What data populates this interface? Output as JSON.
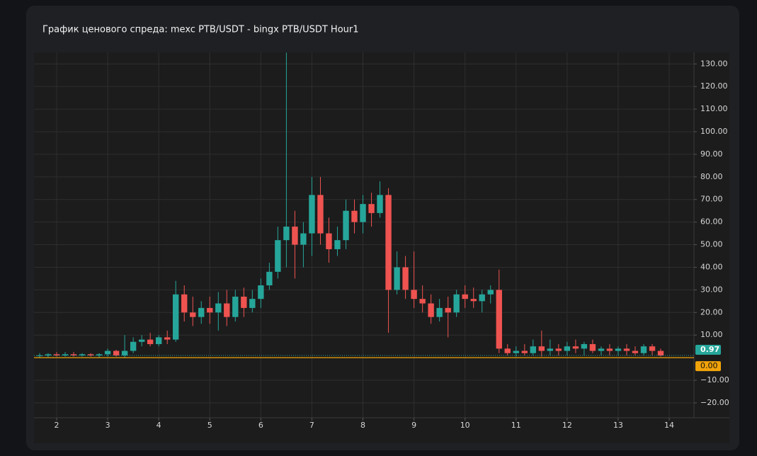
{
  "chart_data": {
    "type": "candlestick",
    "title": "График ценового спреда: mexc PTB/USDT - bingx PTB/USDT Hour1",
    "x": [
      1.667,
      1.833,
      2.0,
      2.167,
      2.333,
      2.5,
      2.667,
      2.833,
      3.0,
      3.167,
      3.333,
      3.5,
      3.667,
      3.833,
      4.0,
      4.167,
      4.333,
      4.5,
      4.667,
      4.833,
      5.0,
      5.167,
      5.333,
      5.5,
      5.667,
      5.833,
      6.0,
      6.167,
      6.333,
      6.5,
      6.667,
      6.833,
      7.0,
      7.167,
      7.333,
      7.5,
      7.667,
      7.833,
      8.0,
      8.167,
      8.333,
      8.5,
      8.667,
      8.833,
      9.0,
      9.167,
      9.333,
      9.5,
      9.667,
      9.833,
      10.0,
      10.167,
      10.333,
      10.5,
      10.667,
      10.833,
      11.0,
      11.167,
      11.333,
      11.5,
      11.667,
      11.833,
      12.0,
      12.167,
      12.333,
      12.5,
      12.667,
      12.833,
      13.0,
      13.167,
      13.333,
      13.5,
      13.667,
      13.833
    ],
    "open": [
      1,
      1,
      1.5,
      1,
      1.5,
      1,
      1.5,
      1,
      1.5,
      3,
      1,
      3,
      7,
      8,
      6,
      9,
      8,
      28,
      20,
      18,
      22,
      20,
      24,
      18,
      27,
      22,
      26,
      32,
      38,
      52,
      58,
      50,
      55,
      72,
      55,
      48,
      52,
      65,
      60,
      68,
      64,
      72,
      30,
      40,
      30,
      26,
      24,
      18,
      22,
      20,
      28,
      26,
      25,
      28,
      30,
      4,
      2,
      3,
      2,
      5,
      3,
      4,
      3,
      5,
      4,
      6,
      3,
      4,
      3,
      4,
      3,
      2,
      5,
      3
    ],
    "high": [
      2,
      2,
      2.5,
      2.5,
      2.5,
      2,
      2,
      2,
      4,
      3.5,
      10,
      9,
      10,
      11,
      10,
      12,
      34,
      32,
      27,
      25,
      27,
      29,
      30,
      30,
      31,
      30,
      35,
      42,
      58,
      135,
      65,
      60,
      80,
      80,
      62,
      58,
      70,
      70,
      72,
      73,
      78,
      75,
      47,
      45,
      47,
      32,
      28,
      26,
      27,
      30,
      32,
      31,
      30,
      32,
      39,
      6,
      5,
      6,
      8,
      12,
      8,
      6,
      7,
      8,
      7,
      8,
      5,
      6,
      5,
      6,
      5,
      6,
      6,
      4
    ],
    "low": [
      0,
      0,
      0.5,
      0.5,
      0.5,
      0.5,
      0.5,
      0,
      0.5,
      0.5,
      0,
      2,
      5,
      5,
      5,
      6,
      7,
      16,
      14,
      15,
      15,
      12,
      14,
      16,
      18,
      20,
      22,
      30,
      35,
      40,
      35,
      40,
      45,
      50,
      42,
      45,
      48,
      55,
      55,
      58,
      62,
      11,
      28,
      26,
      22,
      20,
      15,
      16,
      9,
      18,
      22,
      22,
      20,
      24,
      2,
      1,
      0.5,
      1,
      1,
      0.5,
      1,
      1,
      1,
      2,
      1,
      2,
      1,
      1,
      1,
      1,
      1,
      1,
      1,
      0.5
    ],
    "close": [
      1,
      1.5,
      1,
      1.5,
      1,
      1.5,
      1,
      1.5,
      3,
      1,
      3,
      7,
      8,
      6,
      9,
      8,
      28,
      20,
      18,
      22,
      20,
      24,
      18,
      27,
      22,
      26,
      32,
      38,
      52,
      58,
      50,
      55,
      72,
      55,
      48,
      52,
      65,
      60,
      68,
      64,
      72,
      30,
      40,
      30,
      26,
      24,
      18,
      22,
      20,
      28,
      26,
      25,
      28,
      30,
      4,
      2,
      3,
      2,
      5,
      3,
      4,
      3,
      5,
      4,
      6,
      3,
      4,
      3,
      4,
      3,
      2,
      5,
      3,
      0.97
    ],
    "up_color": "#26a69a",
    "down_color": "#ef5350",
    "xlim": [
      1.556,
      14.485
    ],
    "ylim": [
      -26.6,
      135.1
    ],
    "xticks": [
      2,
      3,
      4,
      5,
      6,
      7,
      8,
      9,
      10,
      11,
      12,
      13,
      14
    ],
    "yticks": [
      {
        "value": -20,
        "label": "−20.00"
      },
      {
        "value": -10,
        "label": "−10.00"
      },
      {
        "value": 10,
        "label": "10.00"
      },
      {
        "value": 20,
        "label": "20.00"
      },
      {
        "value": 30,
        "label": "30.00"
      },
      {
        "value": 40,
        "label": "40.00"
      },
      {
        "value": 50,
        "label": "50.00"
      },
      {
        "value": 60,
        "label": "60.00"
      },
      {
        "value": 70,
        "label": "70.00"
      },
      {
        "value": 80,
        "label": "80.00"
      },
      {
        "value": 90,
        "label": "90.00"
      },
      {
        "value": 100,
        "label": "100.00"
      },
      {
        "value": 110,
        "label": "110.00"
      },
      {
        "value": 120,
        "label": "120.00"
      },
      {
        "value": 130,
        "label": "130.00"
      }
    ],
    "grid": true,
    "reference_line": {
      "value": 0,
      "label": "0.00",
      "color": "#f0a30a"
    },
    "last_price": {
      "value": 0.97,
      "color": "#26a69a"
    }
  }
}
